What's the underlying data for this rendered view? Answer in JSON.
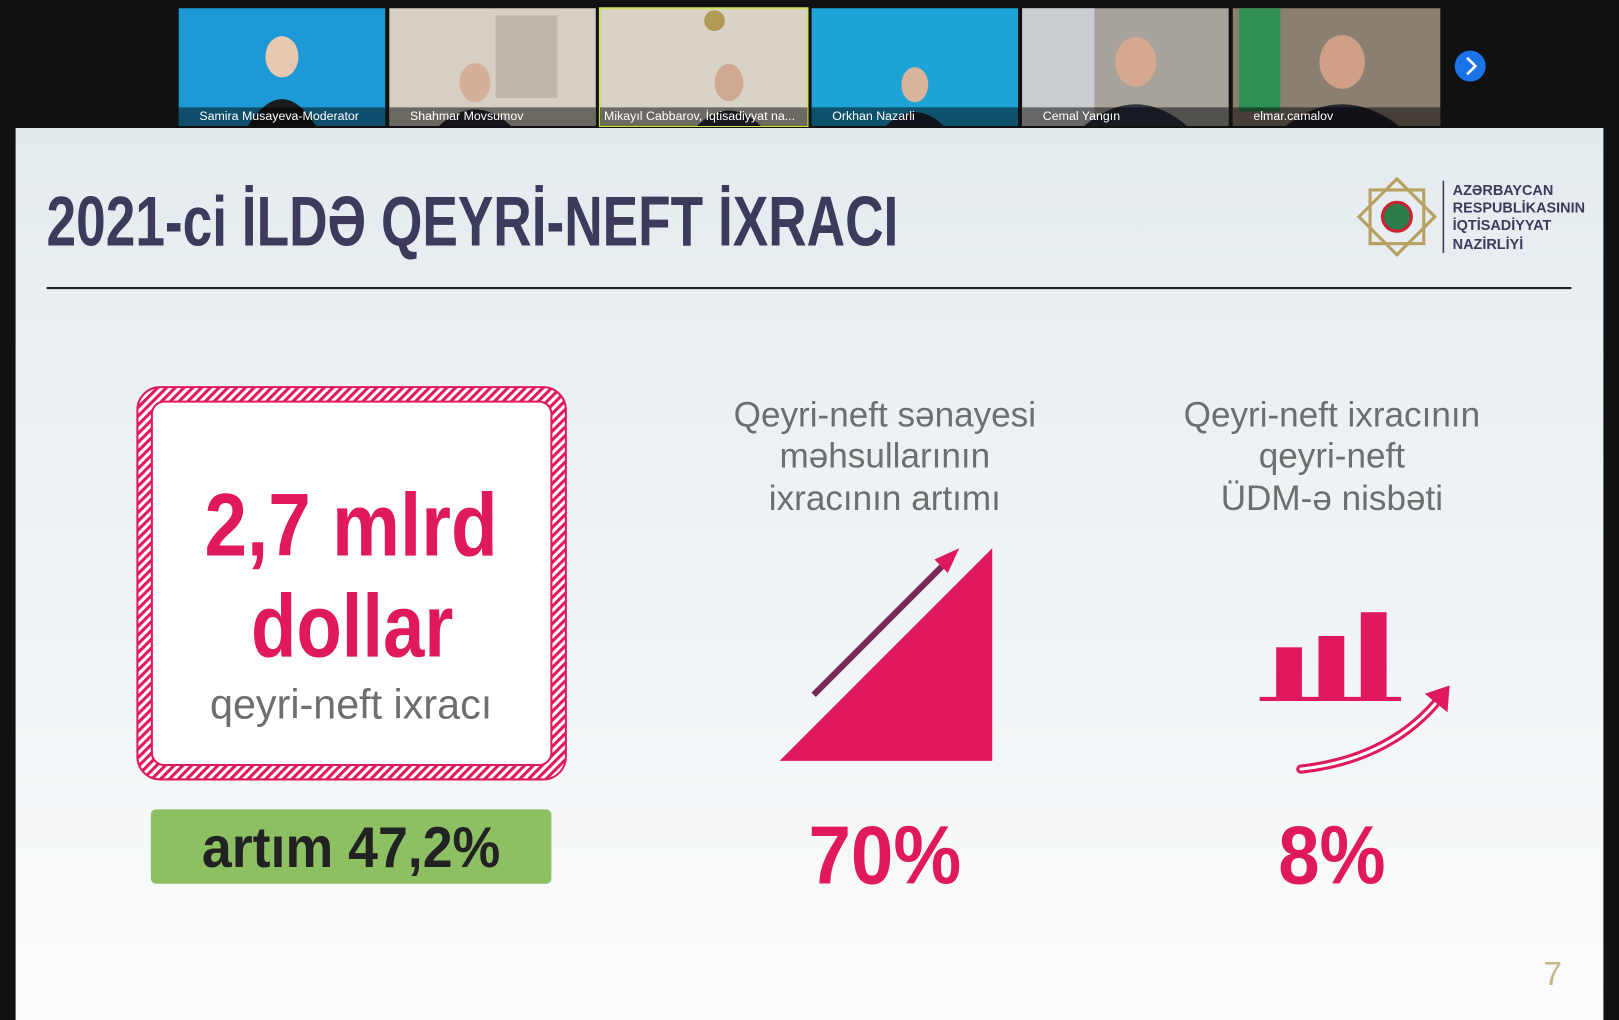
{
  "participants": [
    {
      "name": "Samira Musayeva-Moderator"
    },
    {
      "name": "Shahmar Movsumov"
    },
    {
      "name": "Mikayıl Cabbarov, İqtisadiyyat na..."
    },
    {
      "name": "Orkhan Nazarli"
    },
    {
      "name": "Cemal Yangın"
    },
    {
      "name": "elmar.camalov"
    }
  ],
  "slide": {
    "title": "2021-ci İLDƏ QEYRİ-NEFT İXRACI",
    "logo_lines": [
      "AZƏRBAYCAN",
      "RESPUBLİKASININ",
      "İQTİSADİYYAT",
      "NAZİRLİYİ"
    ],
    "main_value": [
      "2,7 mlrd",
      "dollar"
    ],
    "main_caption": "qeyri-neft ixracı",
    "growth": "artım 47,2%",
    "stats": [
      {
        "caption_lines": [
          "Qeyri-neft sənayesi",
          "məhsullarının",
          "ixracının artımı"
        ],
        "value": "70%"
      },
      {
        "caption_lines": [
          "Qeyri-neft ixracının",
          "qeyri-neft",
          "ÜDM-ə nisbəti"
        ],
        "value": "8%"
      }
    ],
    "page_number": "7"
  }
}
